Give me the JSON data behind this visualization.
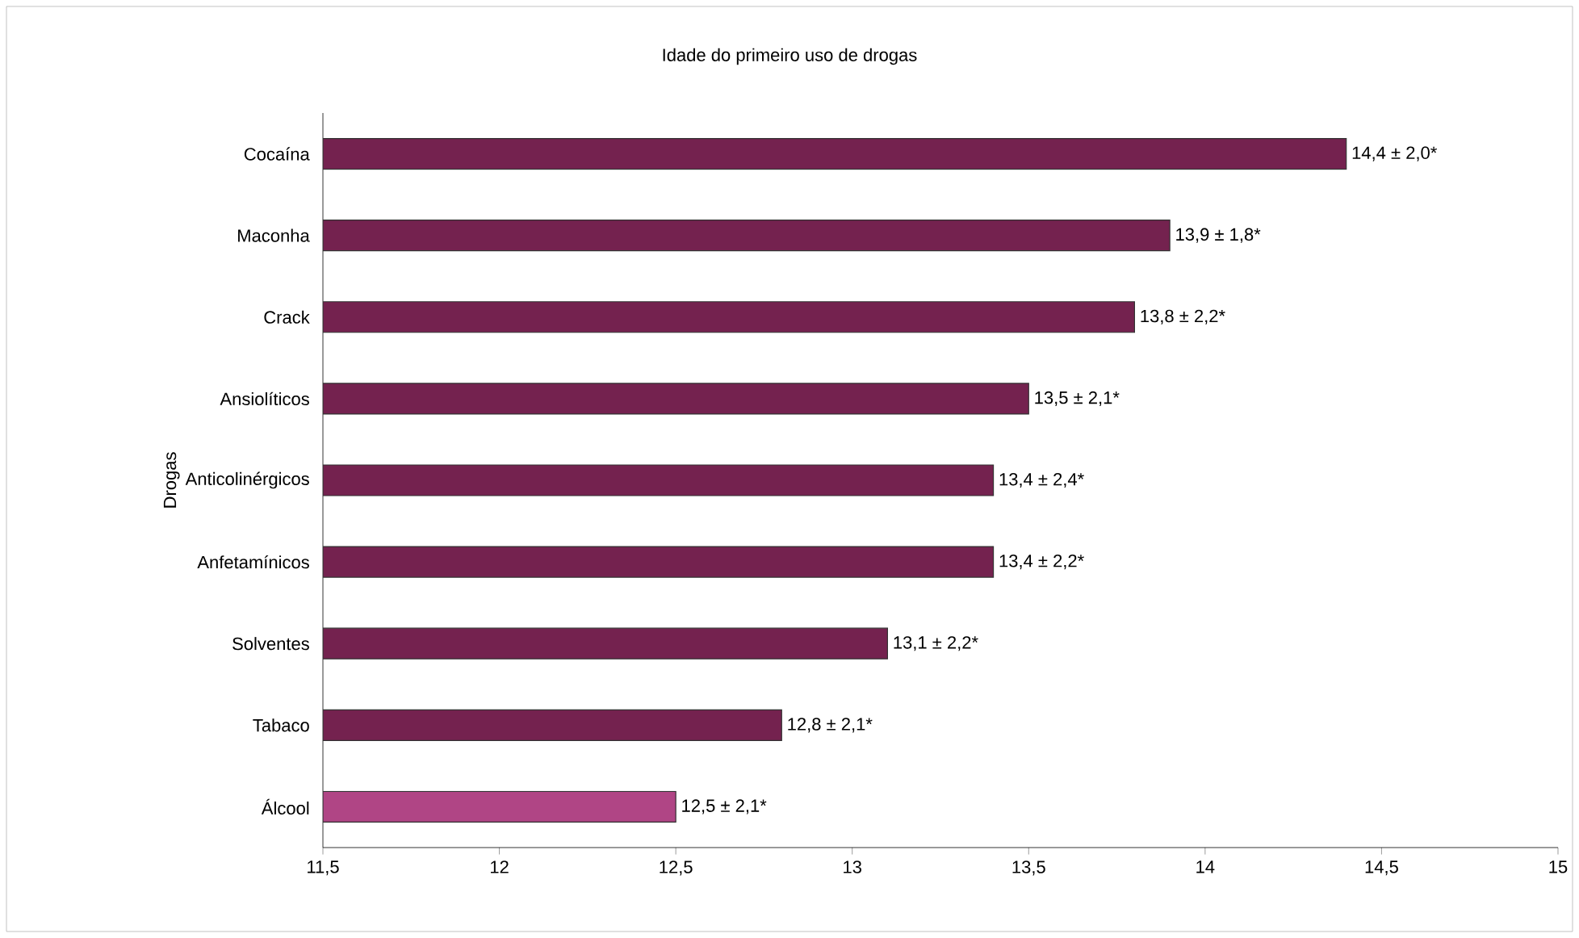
{
  "chart_data": {
    "type": "bar",
    "orientation": "horizontal",
    "title": "Idade do primeiro uso de drogas",
    "ylabel": "Drogas",
    "categories": [
      "Cocaína",
      "Maconha",
      "Crack",
      "Ansiolíticos",
      "Anticolinérgicos",
      "Anfetamínicos",
      "Solventes",
      "Tabaco",
      "Álcool"
    ],
    "values": [
      14.4,
      13.9,
      13.8,
      13.5,
      13.4,
      13.4,
      13.1,
      12.8,
      12.5
    ],
    "value_labels": [
      "14,4 ± 2,0*",
      "13,9 ± 1,8*",
      "13,8 ± 2,2*",
      "13,5 ± 2,1*",
      "13,4 ± 2,4*",
      "13,4 ± 2,2*",
      "13,1 ± 2,2*",
      "12,8 ± 2,1*",
      "12,5 ± 2,1*"
    ],
    "colors": [
      "#74224f",
      "#74224f",
      "#74224f",
      "#74224f",
      "#74224f",
      "#74224f",
      "#74224f",
      "#74224f",
      "#b04585"
    ],
    "xlim": [
      11.5,
      15
    ],
    "xticks": [
      {
        "value": 11.5,
        "label": "11,5"
      },
      {
        "value": 12,
        "label": "12"
      },
      {
        "value": 12.5,
        "label": "12,5"
      },
      {
        "value": 13,
        "label": "13"
      },
      {
        "value": 13.5,
        "label": "13,5"
      },
      {
        "value": 14,
        "label": "14"
      },
      {
        "value": 14.5,
        "label": "14,5"
      },
      {
        "value": 15,
        "label": "15"
      }
    ],
    "grid": false
  }
}
